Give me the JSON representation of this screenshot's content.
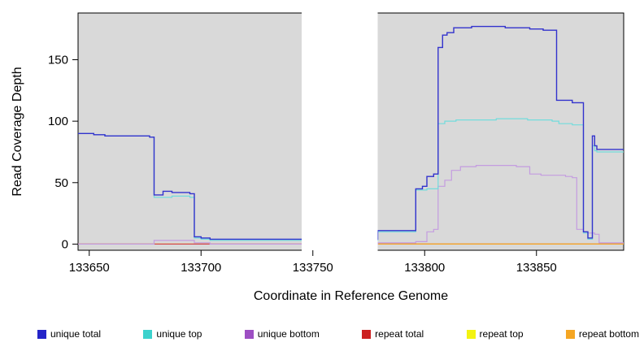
{
  "chart_data": {
    "type": "line",
    "title": "",
    "xlabel": "Coordinate in Reference Genome",
    "ylabel": "Read Coverage Depth",
    "xlim": [
      133645,
      133889
    ],
    "ylim": [
      -5,
      188
    ],
    "xticks": [
      133650,
      133700,
      133750,
      133800,
      133850
    ],
    "yticks": [
      0,
      50,
      100,
      150
    ],
    "plot_background": "#d9d9d9",
    "axis_color": "#000000",
    "grid": false,
    "legend_position": "bottom",
    "masked_region": {
      "x0": 133745,
      "x1": 133779,
      "color": "#ffffff"
    },
    "legend": [
      {
        "label": "unique total",
        "color": "#2424c8"
      },
      {
        "label": "unique top",
        "color": "#3cd2cd"
      },
      {
        "label": "unique bottom",
        "color": "#9d4fc3"
      },
      {
        "label": "repeat total",
        "color": "#cc2020"
      },
      {
        "label": "repeat top",
        "color": "#f3f311"
      },
      {
        "label": "repeat bottom",
        "color": "#f5a623"
      }
    ],
    "series": [
      {
        "key": "repeat-top",
        "name": "repeat top",
        "color": "#f3f32a",
        "width": 1.2,
        "points": [
          [
            133645,
            0
          ],
          [
            133889,
            0
          ]
        ]
      },
      {
        "key": "repeat-total",
        "name": "repeat total",
        "color": "#d4484f",
        "width": 1.2,
        "points": [
          [
            133645,
            0
          ],
          [
            133889,
            0
          ]
        ]
      },
      {
        "key": "repeat-bottom",
        "name": "repeat bottom",
        "color": "#f5a62a",
        "width": 1.2,
        "points": [
          [
            133779,
            0
          ],
          [
            133889,
            0
          ]
        ]
      },
      {
        "key": "unique-bottom",
        "name": "unique bottom",
        "color": "#c49ce0",
        "width": 1.2,
        "points": [
          [
            133645,
            0
          ],
          [
            133679,
            0
          ],
          [
            133679,
            3
          ],
          [
            133697,
            3
          ],
          [
            133697,
            1
          ],
          [
            133704,
            1
          ],
          [
            133704,
            0
          ],
          [
            133779,
            0
          ],
          [
            133779,
            1
          ],
          [
            133796,
            1
          ],
          [
            133796,
            2
          ],
          [
            133801,
            2
          ],
          [
            133801,
            10
          ],
          [
            133804,
            10
          ],
          [
            133804,
            12
          ],
          [
            133806,
            12
          ],
          [
            133806,
            47
          ],
          [
            133809,
            47
          ],
          [
            133809,
            52
          ],
          [
            133812,
            52
          ],
          [
            133812,
            60
          ],
          [
            133816,
            60
          ],
          [
            133816,
            63
          ],
          [
            133823,
            63
          ],
          [
            133823,
            64
          ],
          [
            133841,
            64
          ],
          [
            133841,
            63
          ],
          [
            133847,
            63
          ],
          [
            133847,
            57
          ],
          [
            133852,
            57
          ],
          [
            133852,
            56
          ],
          [
            133863,
            56
          ],
          [
            133863,
            55
          ],
          [
            133866,
            55
          ],
          [
            133866,
            54
          ],
          [
            133868,
            54
          ],
          [
            133868,
            12
          ],
          [
            133871,
            12
          ],
          [
            133871,
            9
          ],
          [
            133876,
            9
          ],
          [
            133876,
            8
          ],
          [
            133878,
            8
          ],
          [
            133878,
            1
          ],
          [
            133889,
            1
          ]
        ]
      },
      {
        "key": "unique-top",
        "name": "unique top",
        "color": "#72dcdc",
        "width": 1.2,
        "points": [
          [
            133645,
            90
          ],
          [
            133652,
            90
          ],
          [
            133652,
            89
          ],
          [
            133657,
            89
          ],
          [
            133657,
            88
          ],
          [
            133677,
            88
          ],
          [
            133677,
            87
          ],
          [
            133679,
            87
          ],
          [
            133679,
            38
          ],
          [
            133687,
            38
          ],
          [
            133687,
            39
          ],
          [
            133695,
            39
          ],
          [
            133695,
            38
          ],
          [
            133697,
            38
          ],
          [
            133697,
            5
          ],
          [
            133700,
            5
          ],
          [
            133700,
            4
          ],
          [
            133704,
            4
          ],
          [
            133704,
            3
          ],
          [
            133779,
            3
          ],
          [
            133779,
            10
          ],
          [
            133796,
            10
          ],
          [
            133796,
            44
          ],
          [
            133801,
            44
          ],
          [
            133801,
            45
          ],
          [
            133806,
            45
          ],
          [
            133806,
            98
          ],
          [
            133809,
            98
          ],
          [
            133809,
            100
          ],
          [
            133814,
            100
          ],
          [
            133814,
            101
          ],
          [
            133832,
            101
          ],
          [
            133832,
            102
          ],
          [
            133846,
            102
          ],
          [
            133846,
            101
          ],
          [
            133857,
            101
          ],
          [
            133857,
            100
          ],
          [
            133860,
            100
          ],
          [
            133860,
            98
          ],
          [
            133866,
            98
          ],
          [
            133866,
            97
          ],
          [
            133871,
            97
          ],
          [
            133871,
            9
          ],
          [
            133873,
            9
          ],
          [
            133873,
            4
          ],
          [
            133875,
            4
          ],
          [
            133875,
            80
          ],
          [
            133876,
            80
          ],
          [
            133876,
            76
          ],
          [
            133877,
            76
          ],
          [
            133877,
            75
          ],
          [
            133889,
            75
          ]
        ]
      },
      {
        "key": "unique-total",
        "name": "unique total",
        "color": "#3232cd",
        "width": 1.4,
        "points": [
          [
            133645,
            90
          ],
          [
            133652,
            90
          ],
          [
            133652,
            89
          ],
          [
            133657,
            89
          ],
          [
            133657,
            88
          ],
          [
            133677,
            88
          ],
          [
            133677,
            87
          ],
          [
            133679,
            87
          ],
          [
            133679,
            40
          ],
          [
            133683,
            40
          ],
          [
            133683,
            43
          ],
          [
            133687,
            43
          ],
          [
            133687,
            42
          ],
          [
            133695,
            42
          ],
          [
            133695,
            41
          ],
          [
            133697,
            41
          ],
          [
            133697,
            6
          ],
          [
            133700,
            6
          ],
          [
            133700,
            5
          ],
          [
            133704,
            5
          ],
          [
            133704,
            4
          ],
          [
            133779,
            4
          ],
          [
            133779,
            11
          ],
          [
            133796,
            11
          ],
          [
            133796,
            45
          ],
          [
            133799,
            45
          ],
          [
            133799,
            47
          ],
          [
            133801,
            47
          ],
          [
            133801,
            55
          ],
          [
            133804,
            55
          ],
          [
            133804,
            57
          ],
          [
            133806,
            57
          ],
          [
            133806,
            160
          ],
          [
            133808,
            160
          ],
          [
            133808,
            170
          ],
          [
            133810,
            170
          ],
          [
            133810,
            172
          ],
          [
            133813,
            172
          ],
          [
            133813,
            176
          ],
          [
            133821,
            176
          ],
          [
            133821,
            177
          ],
          [
            133836,
            177
          ],
          [
            133836,
            176
          ],
          [
            133847,
            176
          ],
          [
            133847,
            175
          ],
          [
            133853,
            175
          ],
          [
            133853,
            174
          ],
          [
            133859,
            174
          ],
          [
            133859,
            117
          ],
          [
            133866,
            117
          ],
          [
            133866,
            115
          ],
          [
            133871,
            115
          ],
          [
            133871,
            10
          ],
          [
            133873,
            10
          ],
          [
            133873,
            5
          ],
          [
            133875,
            5
          ],
          [
            133875,
            88
          ],
          [
            133876,
            88
          ],
          [
            133876,
            80
          ],
          [
            133877,
            80
          ],
          [
            133877,
            77
          ],
          [
            133889,
            77
          ]
        ]
      }
    ]
  }
}
